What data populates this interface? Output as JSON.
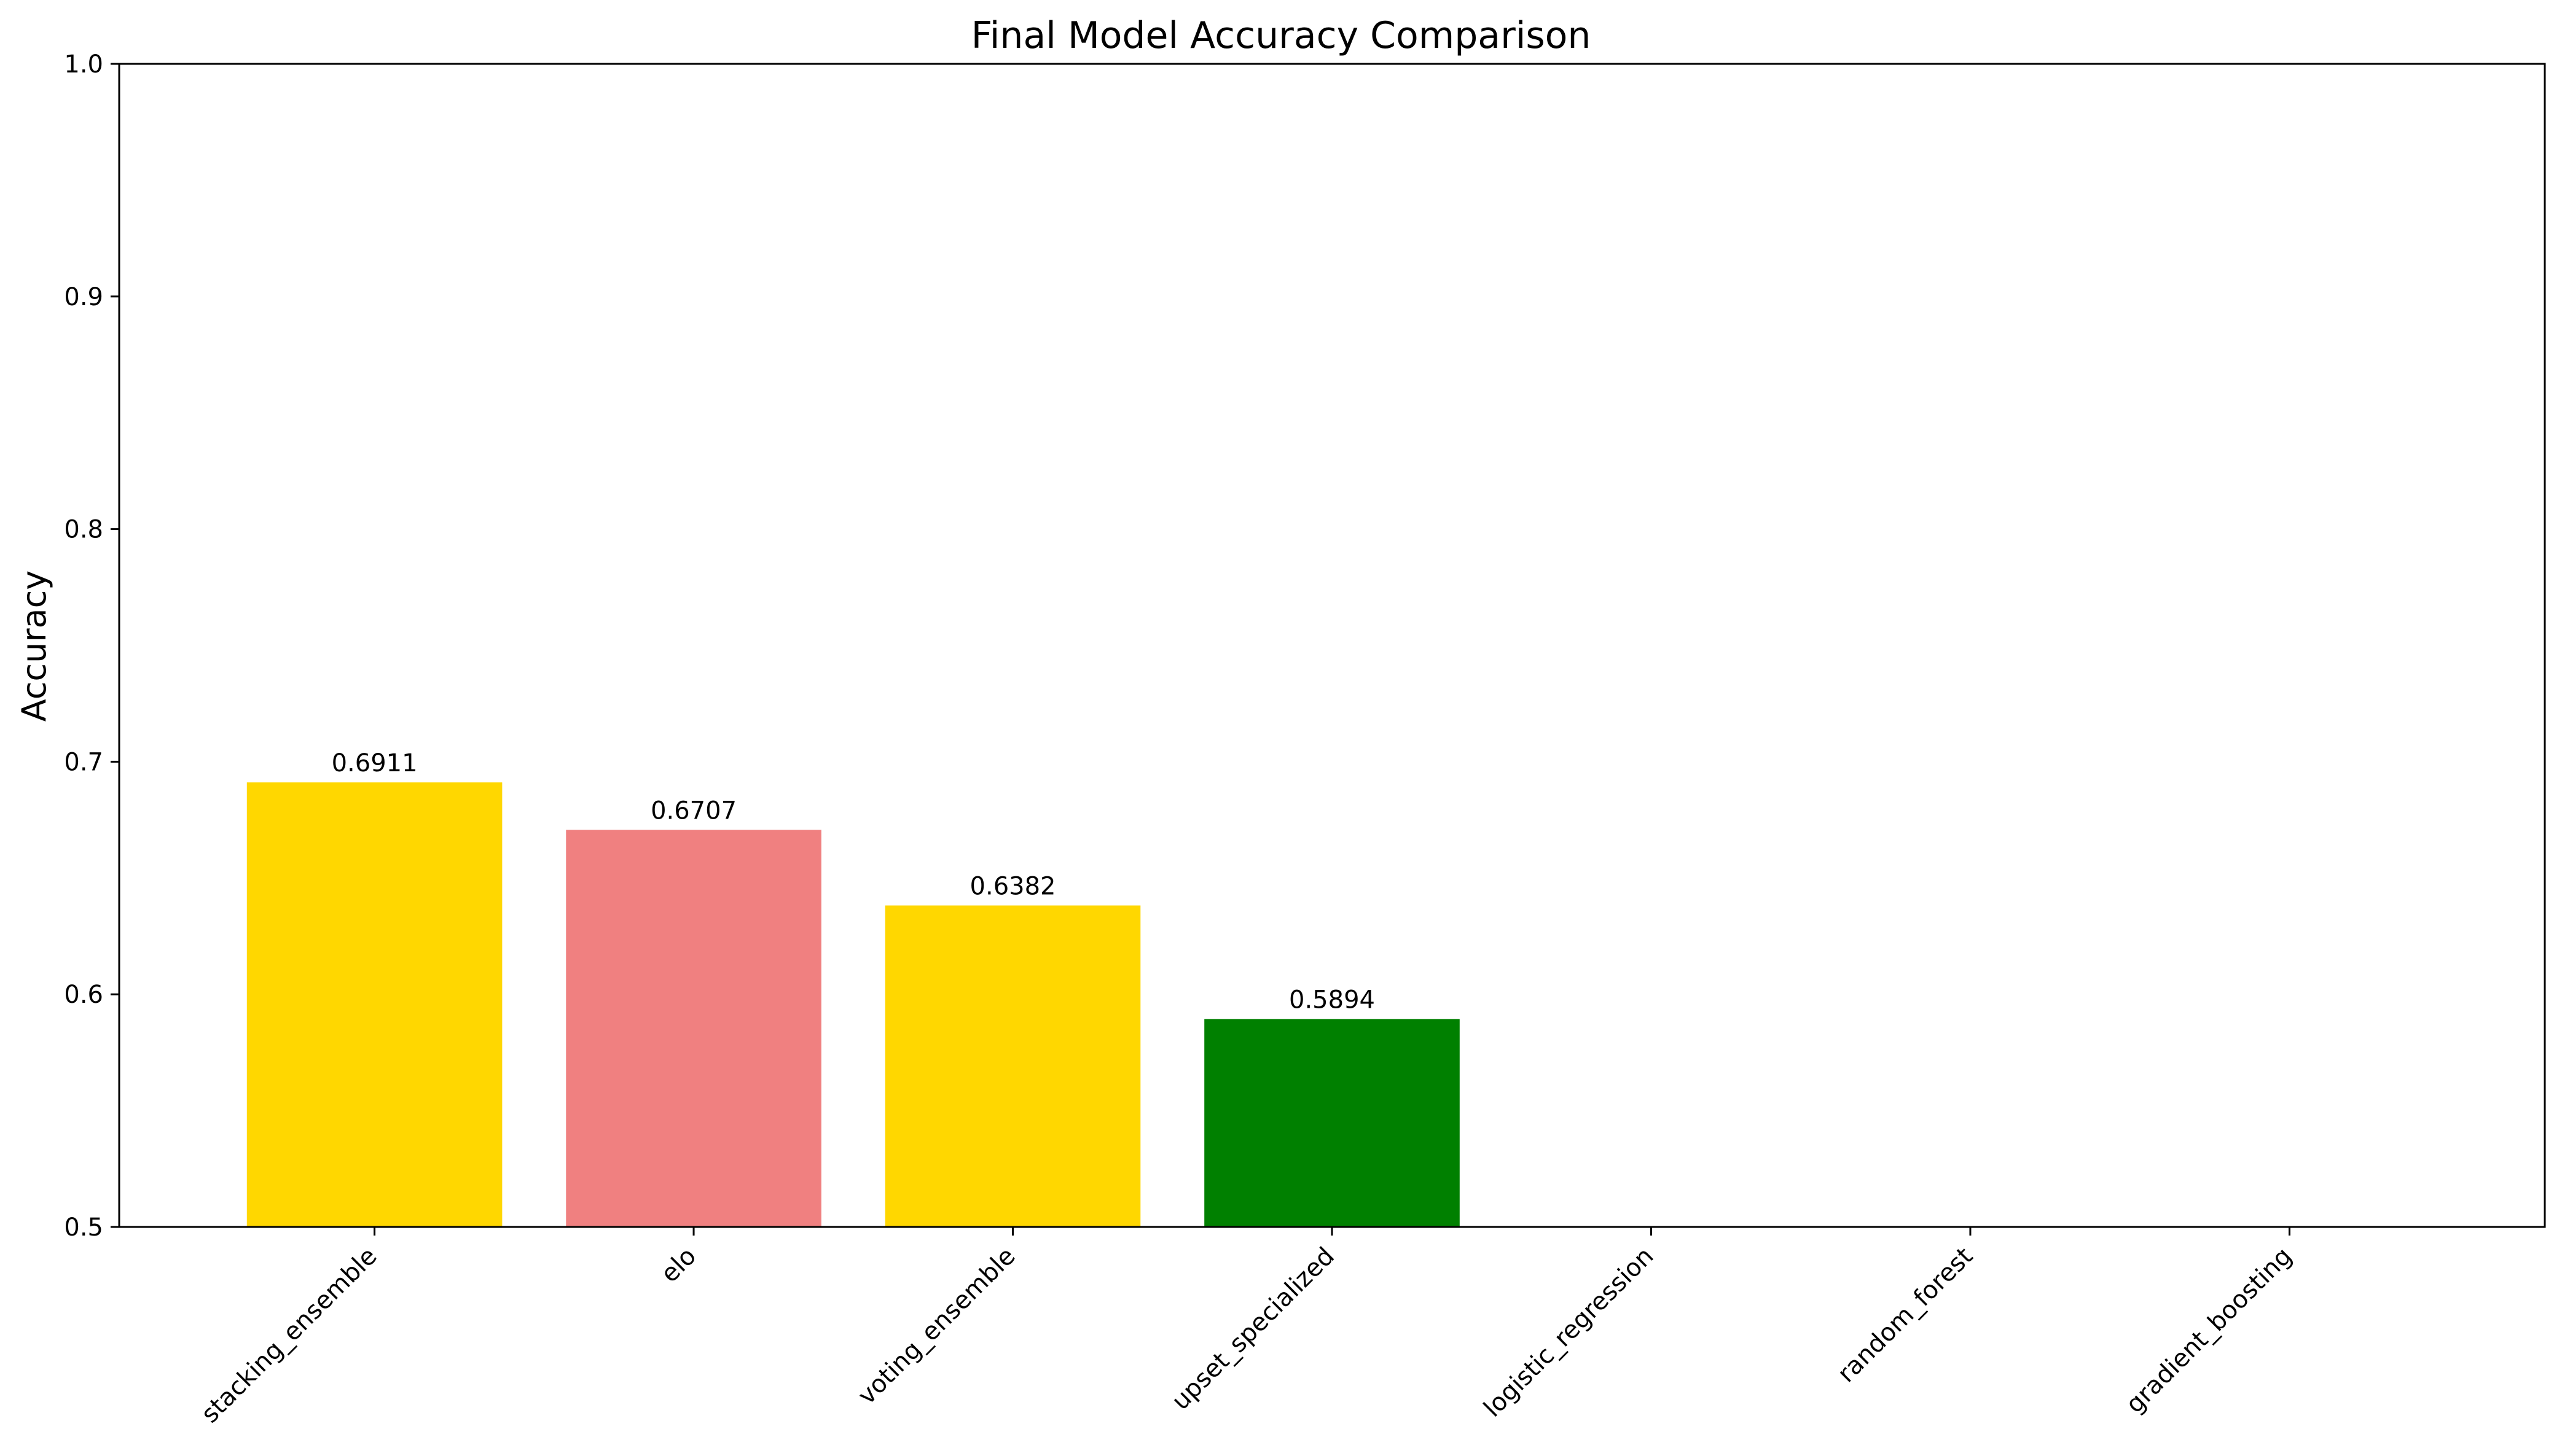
{
  "chart_data": {
    "type": "bar",
    "title": "Final Model Accuracy Comparison",
    "xlabel": "",
    "ylabel": "Accuracy",
    "ylim": [
      0.5,
      1.0
    ],
    "yticks": [
      "0.5",
      "0.6",
      "0.7",
      "0.8",
      "0.9",
      "1.0"
    ],
    "categories": [
      "stacking_ensemble",
      "elo",
      "voting_ensemble",
      "upset_specialized",
      "logistic_regression",
      "random_forest",
      "gradient_boosting"
    ],
    "values": [
      0.6911,
      0.6707,
      0.6382,
      0.5894,
      null,
      null,
      null
    ],
    "value_labels": [
      "0.6911",
      "0.6707",
      "0.6382",
      "0.5894",
      "",
      "",
      ""
    ],
    "colors": [
      "#FFD700",
      "#F08080",
      "#FFD700",
      "#008000",
      "#FFD700",
      "#FFD700",
      "#FFD700"
    ],
    "grid": false,
    "legend": "none"
  }
}
